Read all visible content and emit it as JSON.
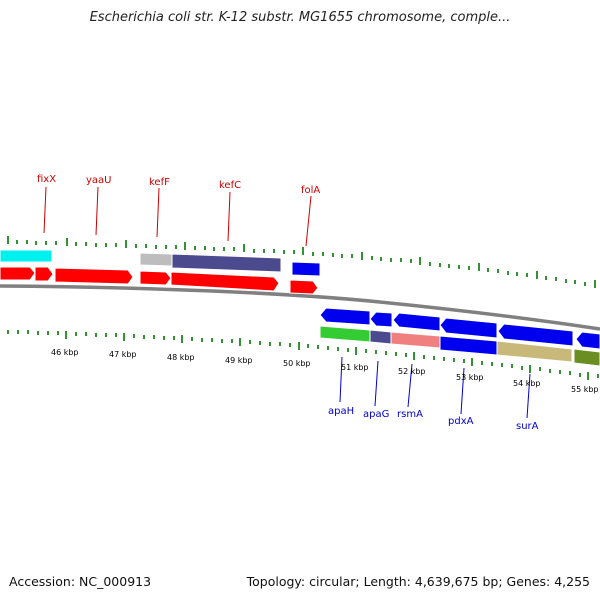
{
  "title": "Escherichia coli str. K-12 substr. MG1655 chromosome, comple...",
  "footer": {
    "accession": "Accession: NC_000913",
    "topology": "Topology: circular; Length: 4,639,675 bp; Genes: 4,255"
  },
  "top_labels": [
    "fixX",
    "yaaU",
    "kefF",
    "kefC",
    "folA"
  ],
  "bottom_labels": [
    "apaH",
    "apaG",
    "rsmA",
    "pdxA",
    "surA"
  ],
  "kbp_labels": [
    "46 kbp",
    "47 kbp",
    "48 kbp",
    "49 kbp",
    "50 kbp",
    "51 kbp",
    "52 kbp",
    "53 kbp",
    "54 kbp",
    "55 kbp"
  ],
  "colors": {
    "gene_red": "#ff0000",
    "gene_blue": "#0000ee",
    "cyan": "#00f0f0",
    "grey": "#bdbdbd",
    "slate": "#4b4a8e",
    "green": "#33cc33",
    "salmon": "#f08080",
    "khaki": "#c8b87a",
    "olive": "#6b8e23",
    "tick_green": "#007700",
    "backbone": "#808080"
  }
}
